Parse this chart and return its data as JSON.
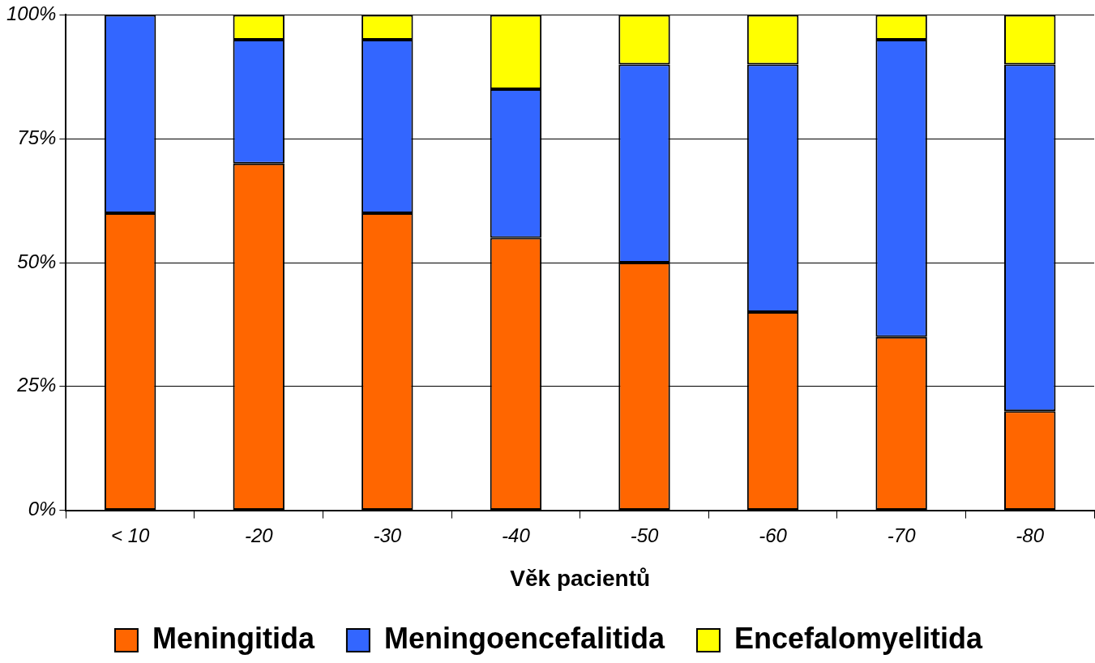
{
  "chart_data": {
    "type": "bar",
    "stacked": true,
    "xlabel": "Věk pacientů",
    "categories": [
      "< 10",
      "-20",
      "-30",
      "-40",
      "-50",
      "-60",
      "-70",
      "-80"
    ],
    "series": [
      {
        "name": "Meningitida",
        "color": "#ff6600",
        "values": [
          60,
          70,
          60,
          55,
          50,
          40,
          35,
          20
        ]
      },
      {
        "name": "Meningoencefalitida",
        "color": "#3366ff",
        "values": [
          40,
          25,
          35,
          30,
          40,
          50,
          60,
          70
        ]
      },
      {
        "name": "Encefalomyelitida",
        "color": "#ffff00",
        "values": [
          0,
          5,
          5,
          15,
          10,
          10,
          5,
          10
        ]
      }
    ],
    "ylim": [
      0,
      100
    ],
    "yticks": [
      {
        "value": 0,
        "label": "0%"
      },
      {
        "value": 25,
        "label": "25%"
      },
      {
        "value": 50,
        "label": "50%"
      },
      {
        "value": 75,
        "label": "75%"
      },
      {
        "value": 100,
        "label": "100%"
      }
    ],
    "grid": "y",
    "legend": "bottom"
  }
}
